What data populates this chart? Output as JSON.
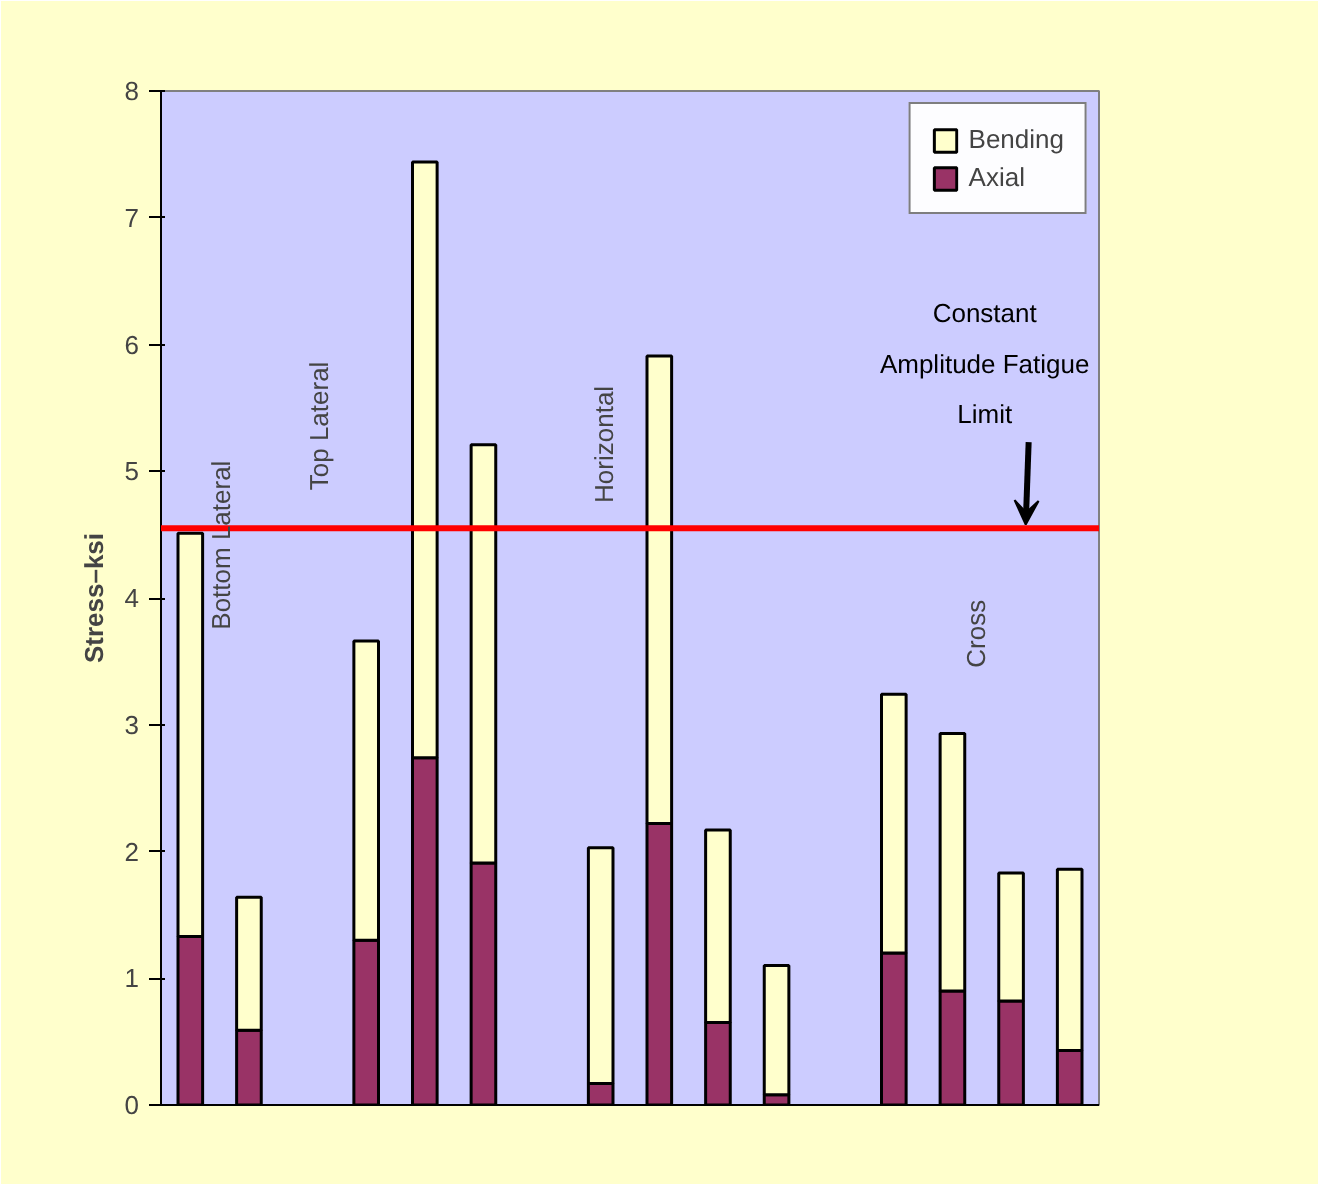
{
  "chart_data": {
    "type": "bar",
    "stacked": true,
    "ylabel": "Stress–ksi",
    "categories": [
      null,
      null,
      null,
      null,
      null,
      null,
      null,
      null,
      null,
      null,
      null,
      null,
      null,
      null,
      null,
      null
    ],
    "series": [
      {
        "name": "Axial",
        "color": "#993366",
        "values": [
          1.33,
          0.59,
          null,
          1.3,
          2.74,
          1.91,
          null,
          0.17,
          2.22,
          0.65,
          0.08,
          null,
          1.2,
          0.9,
          0.82,
          0.43
        ]
      },
      {
        "name": "Bending",
        "color": "#ffffcc",
        "values": [
          3.18,
          1.05,
          null,
          2.36,
          4.7,
          3.3,
          null,
          1.86,
          3.69,
          1.52,
          1.02,
          null,
          2.04,
          2.03,
          1.01,
          1.43
        ]
      }
    ],
    "ylim": [
      0,
      8
    ],
    "yticks": [
      0,
      1,
      2,
      3,
      4,
      5,
      6,
      7,
      8
    ],
    "ref_lines": [
      {
        "axis": "y",
        "value": 4.55,
        "label": "Constant Amplitude Fatigue Limit",
        "color": "#ff0000"
      }
    ],
    "annotations": [
      "Bottom Lateral",
      "Top Lateral",
      "Horizontal",
      "Cross"
    ],
    "legend": "top right",
    "grid": false,
    "tick_labels": "y"
  }
}
